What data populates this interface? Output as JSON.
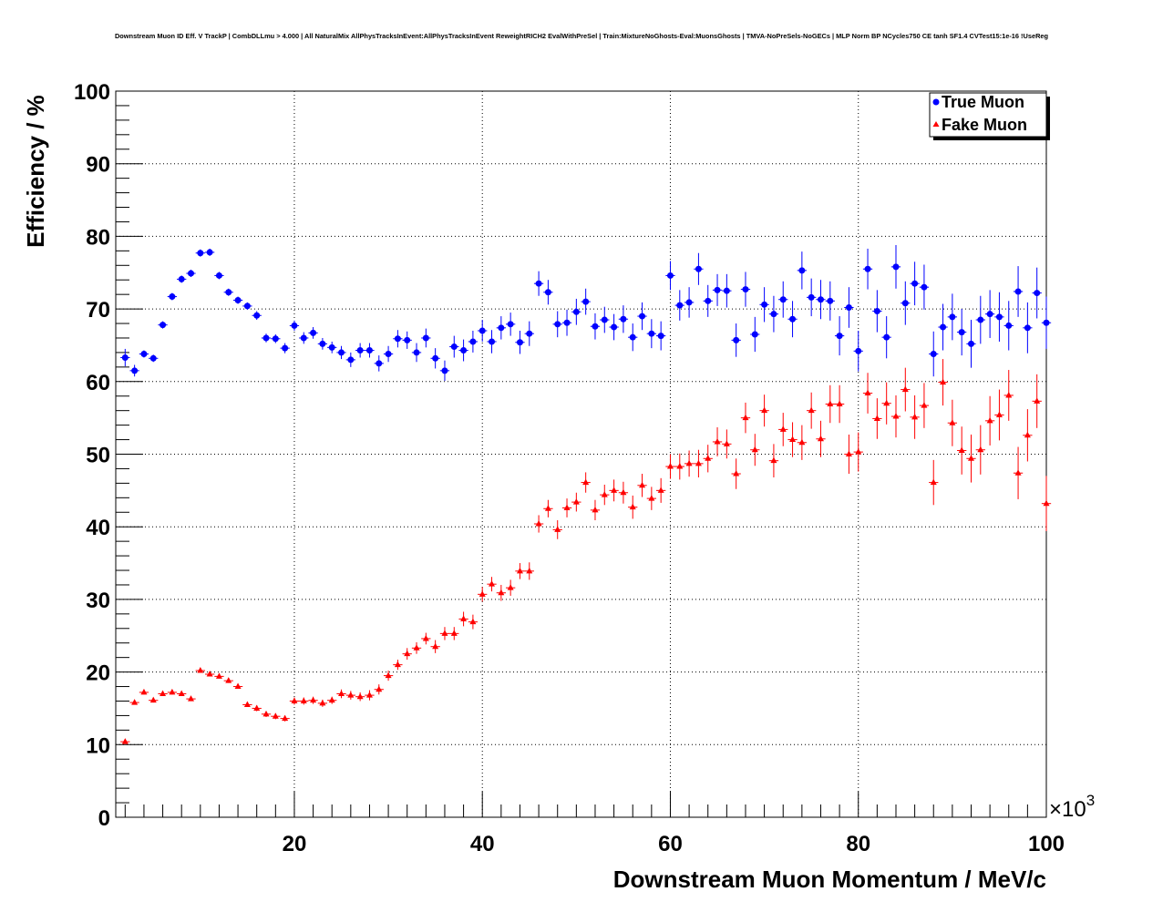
{
  "chart_data": {
    "type": "scatter",
    "title": "Downstream Muon ID Eff. V TrackP | CombDLLmu > 4.000 | All NaturalMix AllPhysTracksInEvent:AllPhysTracksInEvent ReweightRICH2 EvalWithPreSel | Train:MixtureNoGhosts-Eval:MuonsGhosts | TMVA-NoPreSels-NoGECs | MLP Norm BP NCycles750 CE tanh SF1.4 CVTest15:1e-16 !UseReg",
    "xlabel": "Downstream Muon Momentum / MeV/c",
    "ylabel": "Efficiency / %",
    "x_exponent_label": "×10",
    "x_exponent_power": "3",
    "xlim": [
      1000,
      100000
    ],
    "ylim": [
      0,
      100
    ],
    "x_ticks": [
      20000,
      40000,
      60000,
      80000,
      100000
    ],
    "x_tick_labels": [
      "20",
      "40",
      "60",
      "80",
      "100"
    ],
    "y_ticks": [
      0,
      10,
      20,
      30,
      40,
      50,
      60,
      70,
      80,
      90,
      100
    ],
    "y_tick_labels": [
      "0",
      "10",
      "20",
      "30",
      "40",
      "50",
      "60",
      "70",
      "80",
      "90",
      "100"
    ],
    "grid": true,
    "legend_position": "top-right",
    "series": [
      {
        "name": "True Muon",
        "color": "#0000ff",
        "marker": "circle",
        "x": [
          2000,
          3000,
          4000,
          5000,
          6000,
          7000,
          8000,
          9000,
          10000,
          11000,
          12000,
          13000,
          14000,
          15000,
          16000,
          17000,
          18000,
          19000,
          20000,
          21000,
          22000,
          23000,
          24000,
          25000,
          26000,
          27000,
          28000,
          29000,
          30000,
          31000,
          32000,
          33000,
          34000,
          35000,
          36000,
          37000,
          38000,
          39000,
          40000,
          41000,
          42000,
          43000,
          44000,
          45000,
          46000,
          47000,
          48000,
          49000,
          50000,
          51000,
          52000,
          53000,
          54000,
          55000,
          56000,
          57000,
          58000,
          59000,
          60000,
          61000,
          62000,
          63000,
          64000,
          65000,
          66000,
          67000,
          68000,
          69000,
          70000,
          71000,
          72000,
          73000,
          74000,
          75000,
          76000,
          77000,
          78000,
          79000,
          80000,
          81000,
          82000,
          83000,
          84000,
          85000,
          86000,
          87000,
          88000,
          89000,
          90000,
          91000,
          92000,
          93000,
          94000,
          95000,
          96000,
          97000,
          98000,
          99000,
          100000
        ],
        "y": [
          63.3,
          61.5,
          63.8,
          63.2,
          67.8,
          71.7,
          74.1,
          74.9,
          77.7,
          77.8,
          74.6,
          72.3,
          71.2,
          70.4,
          69.1,
          66.0,
          65.9,
          64.6,
          67.7,
          66.0,
          66.7,
          65.2,
          64.7,
          64.0,
          63.0,
          64.3,
          64.3,
          62.5,
          63.8,
          65.9,
          65.7,
          64.0,
          66.0,
          63.2,
          61.5,
          64.8,
          64.3,
          65.5,
          67.0,
          65.5,
          67.4,
          67.9,
          65.4,
          66.6,
          73.5,
          72.3,
          67.9,
          68.1,
          69.6,
          71.0,
          67.6,
          68.5,
          67.5,
          68.6,
          66.1,
          69.0,
          66.6,
          66.3,
          74.6,
          70.5,
          70.9,
          75.5,
          71.1,
          72.6,
          72.5,
          65.7,
          72.7,
          66.5,
          70.6,
          69.3,
          71.3,
          68.6,
          75.3,
          71.6,
          71.3,
          71.1,
          66.3,
          70.2,
          64.2,
          75.5,
          69.7,
          66.1,
          75.8,
          70.8,
          73.5,
          73.0,
          63.8,
          67.5,
          68.9,
          66.8,
          65.2,
          68.5,
          69.3,
          68.9,
          67.7,
          72.4,
          67.4,
          72.2,
          68.1
        ],
        "err": [
          1.2,
          0.8,
          0.5,
          0.5,
          0.5,
          0.5,
          0.5,
          0.5,
          0.5,
          0.5,
          0.5,
          0.5,
          0.5,
          0.5,
          0.6,
          0.6,
          0.6,
          0.7,
          0.7,
          0.8,
          0.8,
          0.8,
          0.8,
          0.9,
          1.0,
          1.0,
          1.0,
          1.1,
          1.1,
          1.2,
          1.2,
          1.3,
          1.3,
          1.4,
          1.4,
          1.5,
          1.5,
          1.5,
          1.5,
          1.6,
          1.6,
          1.6,
          1.6,
          1.7,
          1.7,
          1.7,
          1.8,
          1.8,
          1.8,
          1.8,
          1.8,
          1.8,
          1.8,
          1.9,
          1.9,
          1.9,
          2.0,
          2.0,
          2.0,
          2.1,
          2.1,
          2.2,
          2.2,
          2.2,
          2.3,
          2.3,
          2.4,
          2.4,
          2.4,
          2.5,
          2.5,
          2.5,
          2.6,
          2.6,
          2.7,
          2.7,
          2.7,
          2.8,
          2.8,
          2.8,
          2.9,
          2.9,
          3.0,
          3.0,
          3.0,
          3.1,
          3.1,
          3.2,
          3.2,
          3.2,
          3.3,
          3.3,
          3.3,
          3.4,
          3.4,
          3.5,
          3.5,
          3.5,
          3.6
        ]
      },
      {
        "name": "Fake Muon",
        "color": "#ff0000",
        "marker": "triangle",
        "x": [
          2000,
          3000,
          4000,
          5000,
          6000,
          7000,
          8000,
          9000,
          10000,
          11000,
          12000,
          13000,
          14000,
          15000,
          16000,
          17000,
          18000,
          19000,
          20000,
          21000,
          22000,
          23000,
          24000,
          25000,
          26000,
          27000,
          28000,
          29000,
          30000,
          31000,
          32000,
          33000,
          34000,
          35000,
          36000,
          37000,
          38000,
          39000,
          40000,
          41000,
          42000,
          43000,
          44000,
          45000,
          46000,
          47000,
          48000,
          49000,
          50000,
          51000,
          52000,
          53000,
          54000,
          55000,
          56000,
          57000,
          58000,
          59000,
          60000,
          61000,
          62000,
          63000,
          64000,
          65000,
          66000,
          67000,
          68000,
          69000,
          70000,
          71000,
          72000,
          73000,
          74000,
          75000,
          76000,
          77000,
          78000,
          79000,
          80000,
          81000,
          82000,
          83000,
          84000,
          85000,
          86000,
          87000,
          88000,
          89000,
          90000,
          91000,
          92000,
          93000,
          94000,
          95000,
          96000,
          97000,
          98000,
          99000,
          100000
        ],
        "y": [
          10.4,
          15.8,
          17.2,
          16.1,
          17.0,
          17.2,
          17.0,
          16.3,
          20.2,
          19.7,
          19.4,
          18.8,
          18.0,
          15.5,
          15.0,
          14.2,
          13.9,
          13.6,
          16.0,
          16.0,
          16.1,
          15.7,
          16.1,
          17.0,
          16.8,
          16.6,
          16.8,
          17.6,
          19.5,
          21.0,
          22.5,
          23.3,
          24.6,
          23.5,
          25.3,
          25.3,
          27.3,
          26.9,
          30.7,
          32.1,
          30.9,
          31.6,
          33.9,
          33.9,
          40.4,
          42.5,
          39.6,
          42.6,
          43.4,
          46.1,
          42.3,
          44.4,
          45.0,
          44.7,
          42.7,
          45.7,
          43.9,
          45.0,
          48.3,
          48.3,
          48.7,
          48.7,
          49.4,
          51.7,
          51.4,
          47.3,
          55.0,
          50.6,
          56.0,
          49.1,
          53.4,
          52.0,
          51.6,
          56.0,
          52.1,
          56.9,
          56.9,
          50.0,
          50.3,
          58.4,
          54.9,
          57.0,
          55.2,
          58.9,
          55.1,
          56.7,
          46.1,
          59.9,
          54.3,
          50.5,
          49.4,
          50.6,
          54.6,
          55.4,
          58.1,
          47.4,
          52.6,
          57.3,
          43.2
        ],
        "err": [
          0.3,
          0.3,
          0.3,
          0.3,
          0.3,
          0.3,
          0.3,
          0.3,
          0.3,
          0.3,
          0.3,
          0.3,
          0.3,
          0.3,
          0.4,
          0.4,
          0.4,
          0.4,
          0.5,
          0.5,
          0.5,
          0.5,
          0.5,
          0.6,
          0.6,
          0.6,
          0.7,
          0.7,
          0.7,
          0.7,
          0.8,
          0.8,
          0.8,
          0.9,
          0.9,
          0.9,
          1.0,
          1.0,
          1.0,
          1.0,
          1.1,
          1.1,
          1.1,
          1.2,
          1.2,
          1.2,
          1.3,
          1.3,
          1.3,
          1.4,
          1.4,
          1.4,
          1.5,
          1.5,
          1.6,
          1.6,
          1.6,
          1.7,
          1.7,
          1.8,
          1.8,
          1.9,
          1.9,
          2.0,
          2.0,
          2.1,
          2.1,
          2.2,
          2.2,
          2.3,
          2.3,
          2.4,
          2.4,
          2.5,
          2.5,
          2.6,
          2.6,
          2.7,
          2.7,
          2.8,
          2.8,
          2.9,
          2.9,
          3.0,
          3.0,
          3.1,
          3.1,
          3.2,
          3.2,
          3.3,
          3.3,
          3.4,
          3.4,
          3.5,
          3.5,
          3.6,
          3.6,
          3.7,
          3.8
        ]
      }
    ]
  }
}
